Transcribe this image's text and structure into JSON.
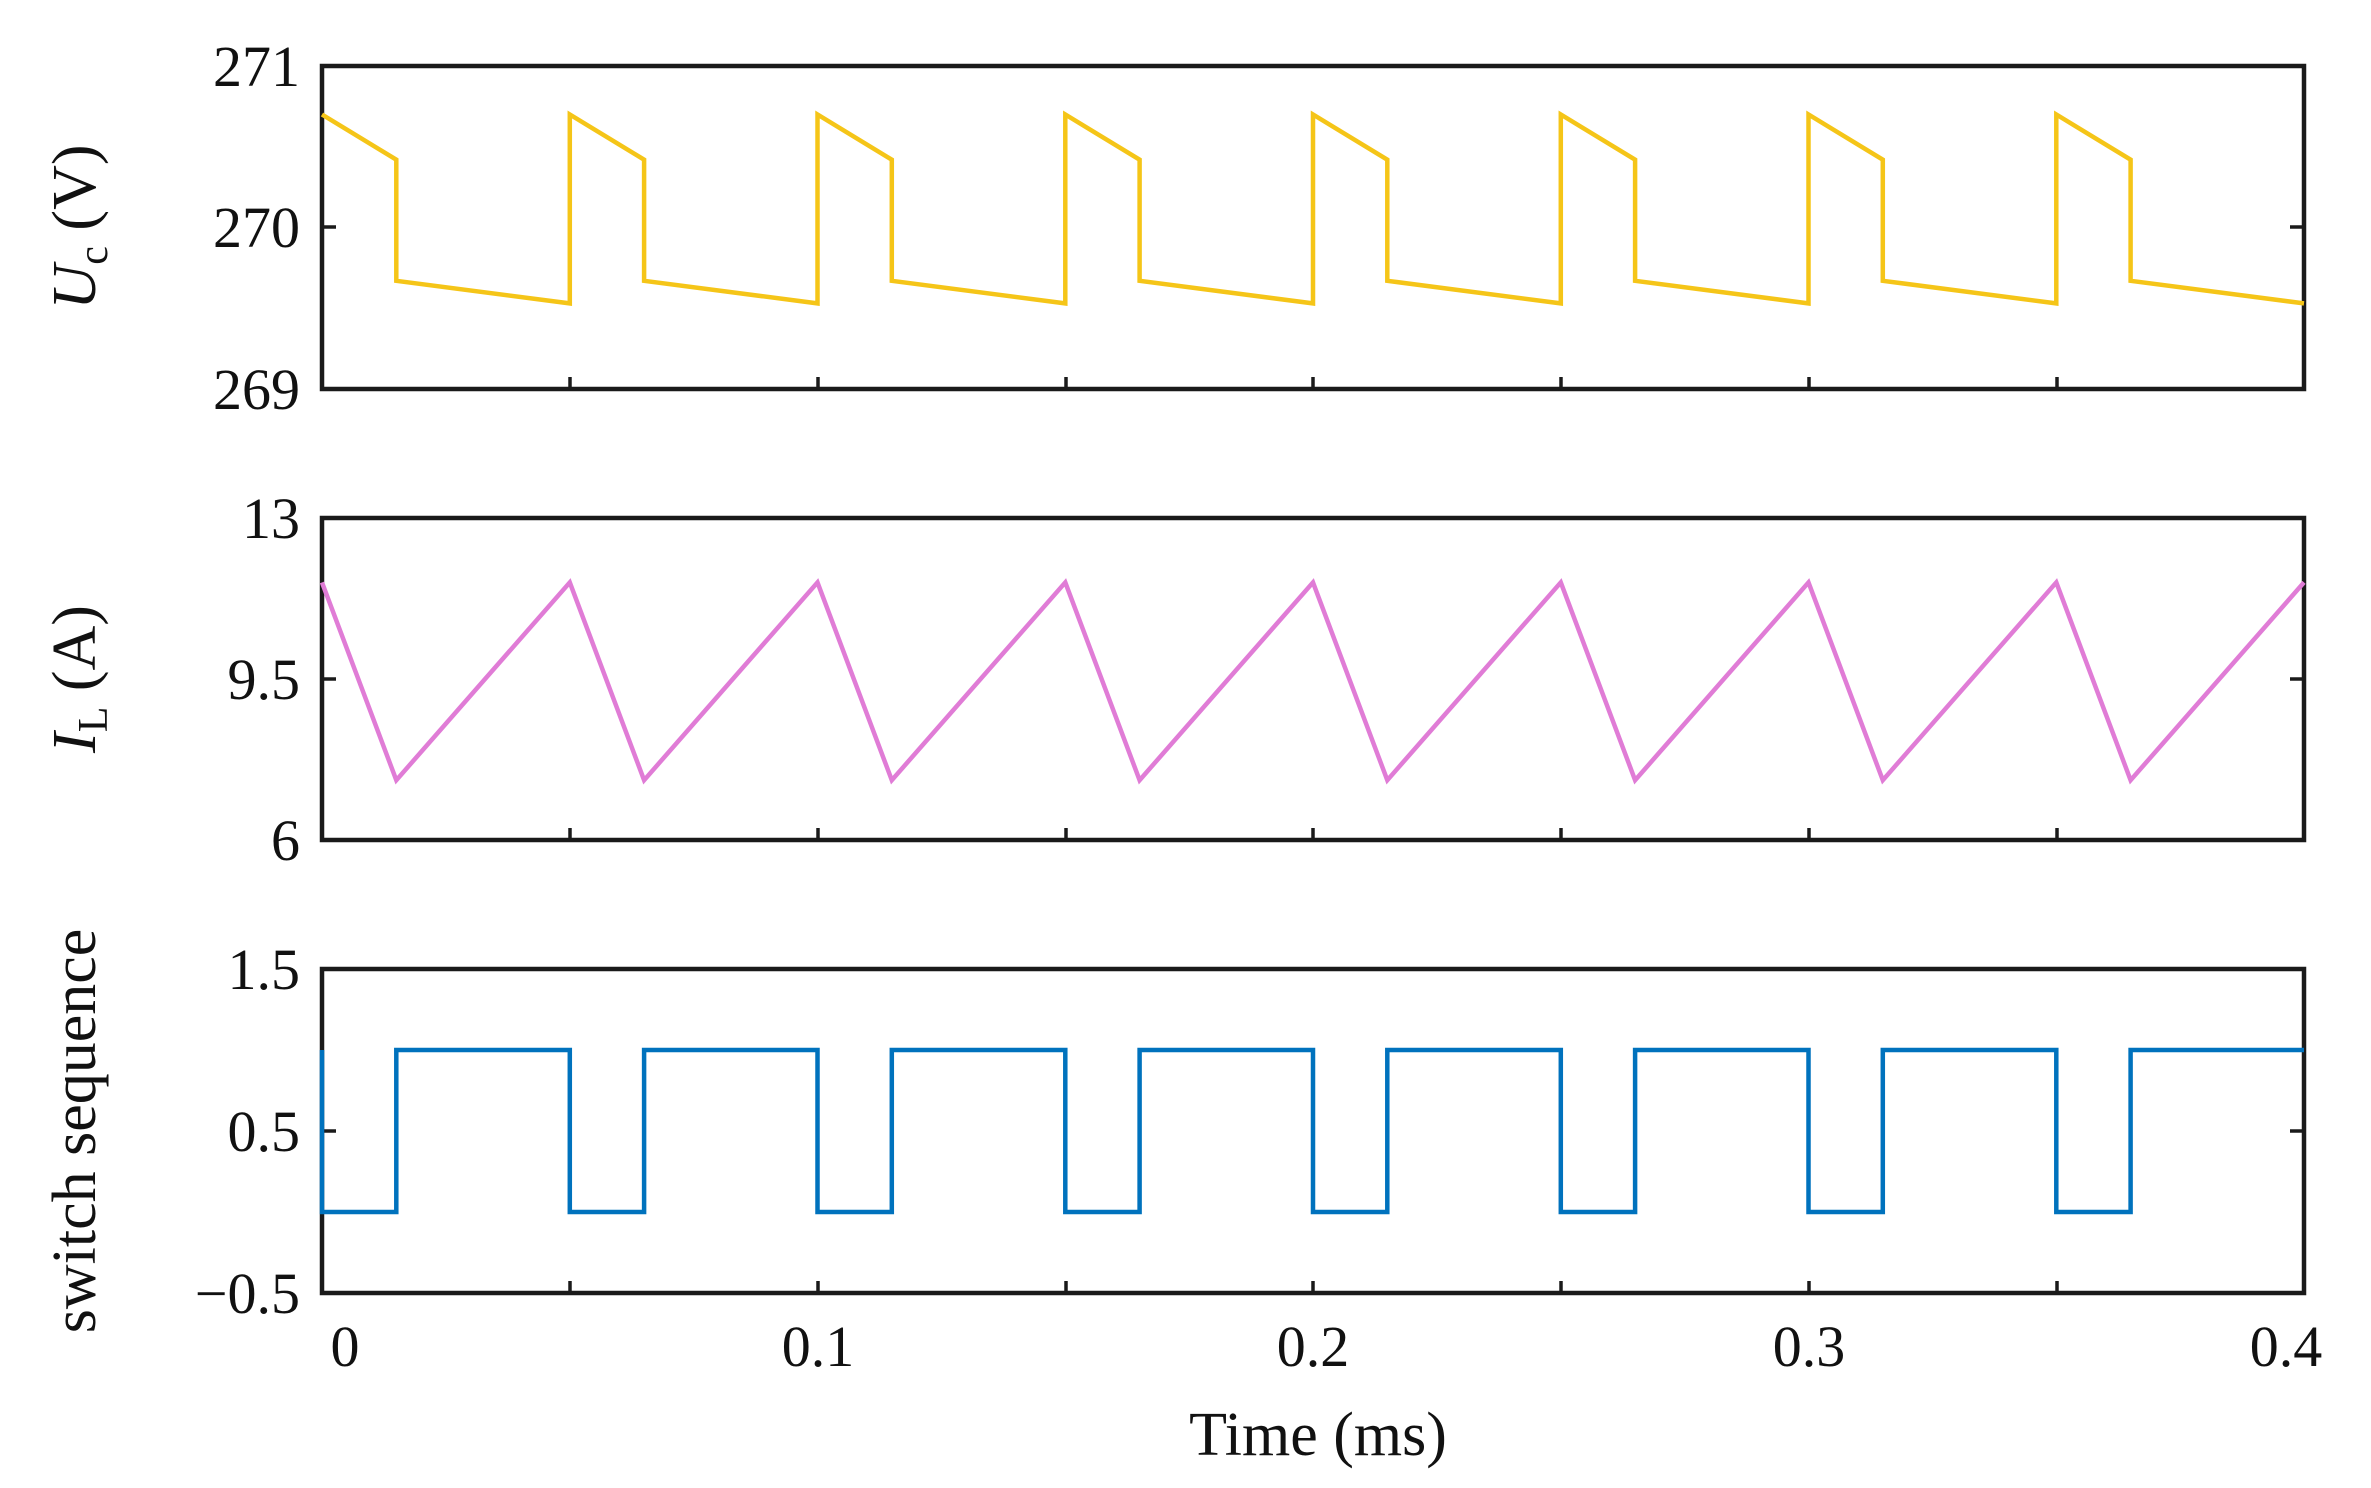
{
  "chart_data": [
    {
      "type": "line",
      "ylabel": {
        "symbol": "U",
        "subscript": "c",
        "unit": "(V)"
      },
      "ylim": [
        269,
        271
      ],
      "yticks": [
        269,
        270,
        271
      ],
      "ytick_labels": [
        "269",
        "270",
        "271"
      ],
      "xlim": [
        0,
        0.4
      ],
      "color": "#F5C518",
      "series": [
        {
          "name": "Uc",
          "x": [
            0,
            0.015,
            0.015,
            0.05,
            0.05,
            0.065,
            0.065,
            0.1,
            0.1,
            0.115,
            0.115,
            0.15,
            0.15,
            0.165,
            0.165,
            0.2,
            0.2,
            0.215,
            0.215,
            0.25,
            0.25,
            0.265,
            0.265,
            0.3,
            0.3,
            0.315,
            0.315,
            0.35,
            0.35,
            0.365,
            0.365,
            0.4
          ],
          "y": [
            270.7,
            270.42,
            269.67,
            269.53,
            270.7,
            270.42,
            269.67,
            269.53,
            270.7,
            270.42,
            269.67,
            269.53,
            270.7,
            270.42,
            269.67,
            269.53,
            270.7,
            270.42,
            269.67,
            269.53,
            270.7,
            270.42,
            269.67,
            269.53,
            270.7,
            270.42,
            269.67,
            269.53,
            270.7,
            270.42,
            269.67,
            269.53
          ]
        }
      ]
    },
    {
      "type": "line",
      "ylabel": {
        "symbol": "I",
        "subscript": "L",
        "unit": "(A)"
      },
      "ylim": [
        6,
        13
      ],
      "yticks": [
        6,
        9.5,
        13
      ],
      "ytick_labels": [
        "6",
        "9.5",
        "13"
      ],
      "xlim": [
        0,
        0.4
      ],
      "color": "#E07CD6",
      "series": [
        {
          "name": "IL",
          "x": [
            0,
            0.015,
            0.05,
            0.065,
            0.1,
            0.115,
            0.15,
            0.165,
            0.2,
            0.215,
            0.25,
            0.265,
            0.3,
            0.315,
            0.35,
            0.365,
            0.4
          ],
          "y": [
            11.6,
            7.3,
            11.6,
            7.3,
            11.6,
            7.3,
            11.6,
            7.3,
            11.6,
            7.3,
            11.6,
            7.3,
            11.6,
            7.3,
            11.6,
            7.3,
            11.6
          ]
        }
      ]
    },
    {
      "type": "line",
      "ylabel": {
        "text": "switch sequence"
      },
      "ylim": [
        -0.5,
        1.5
      ],
      "yticks": [
        -0.5,
        0.5,
        1.5
      ],
      "ytick_labels": [
        "−0.5",
        "0.5",
        "1.5"
      ],
      "xlim": [
        0,
        0.4
      ],
      "xticks": [
        0,
        0.1,
        0.2,
        0.3,
        0.4
      ],
      "xtick_labels": [
        "0",
        "0.1",
        "0.2",
        "0.3",
        "0.4"
      ],
      "xlabel": "Time (ms)",
      "color": "#0072BD",
      "series": [
        {
          "name": "switch",
          "x": [
            0,
            0,
            0.015,
            0.015,
            0.05,
            0.05,
            0.065,
            0.065,
            0.1,
            0.1,
            0.115,
            0.115,
            0.15,
            0.15,
            0.165,
            0.165,
            0.2,
            0.2,
            0.215,
            0.215,
            0.25,
            0.25,
            0.265,
            0.265,
            0.3,
            0.3,
            0.315,
            0.315,
            0.35,
            0.35,
            0.365,
            0.365,
            0.4
          ],
          "y": [
            1,
            0,
            0,
            1,
            1,
            0,
            0,
            1,
            1,
            0,
            0,
            1,
            1,
            0,
            0,
            1,
            1,
            0,
            0,
            1,
            1,
            0,
            0,
            1,
            1,
            0,
            0,
            1,
            1,
            0,
            0,
            1,
            1
          ]
        }
      ]
    }
  ]
}
